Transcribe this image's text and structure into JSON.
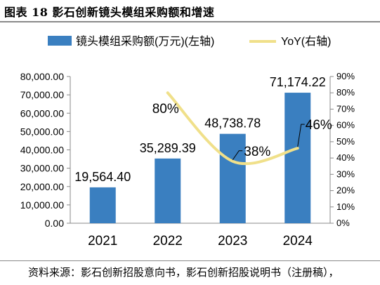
{
  "figure": {
    "title": "图表 18 影石创新镜头模组采购额和增速",
    "source": "资料来源：影石创新招股意向书，影石创新招股说明书（注册稿），"
  },
  "chart_data": {
    "type": "bar",
    "categories": [
      "2021",
      "2022",
      "2023",
      "2024"
    ],
    "series": [
      {
        "name": "镜头模组采购额(万元)(左轴)",
        "type": "bar",
        "axis": "left",
        "color": "#3a7fc0",
        "values": [
          19564.4,
          35289.39,
          48738.78,
          71174.22
        ],
        "labels": [
          "19,564.40",
          "35,289.39",
          "48,738.78",
          "71,174.22"
        ]
      },
      {
        "name": "YoY(右轴)",
        "type": "line",
        "axis": "right",
        "color": "#f0e08a",
        "values": [
          null,
          80,
          38,
          46
        ],
        "labels": [
          "",
          "80%",
          "38%",
          "46%"
        ]
      }
    ],
    "y_left": {
      "min": 0,
      "max": 80000,
      "ticks": [
        "0.00",
        "10,000.00",
        "20,000.00",
        "30,000.00",
        "40,000.00",
        "50,000.00",
        "60,000.00",
        "70,000.00",
        "80,000.00"
      ]
    },
    "y_right": {
      "min": 0,
      "max": 90,
      "ticks": [
        "0%",
        "10%",
        "20%",
        "30%",
        "40%",
        "50%",
        "60%",
        "70%",
        "80%",
        "90%"
      ]
    },
    "legend_position": "top",
    "grid": false
  }
}
